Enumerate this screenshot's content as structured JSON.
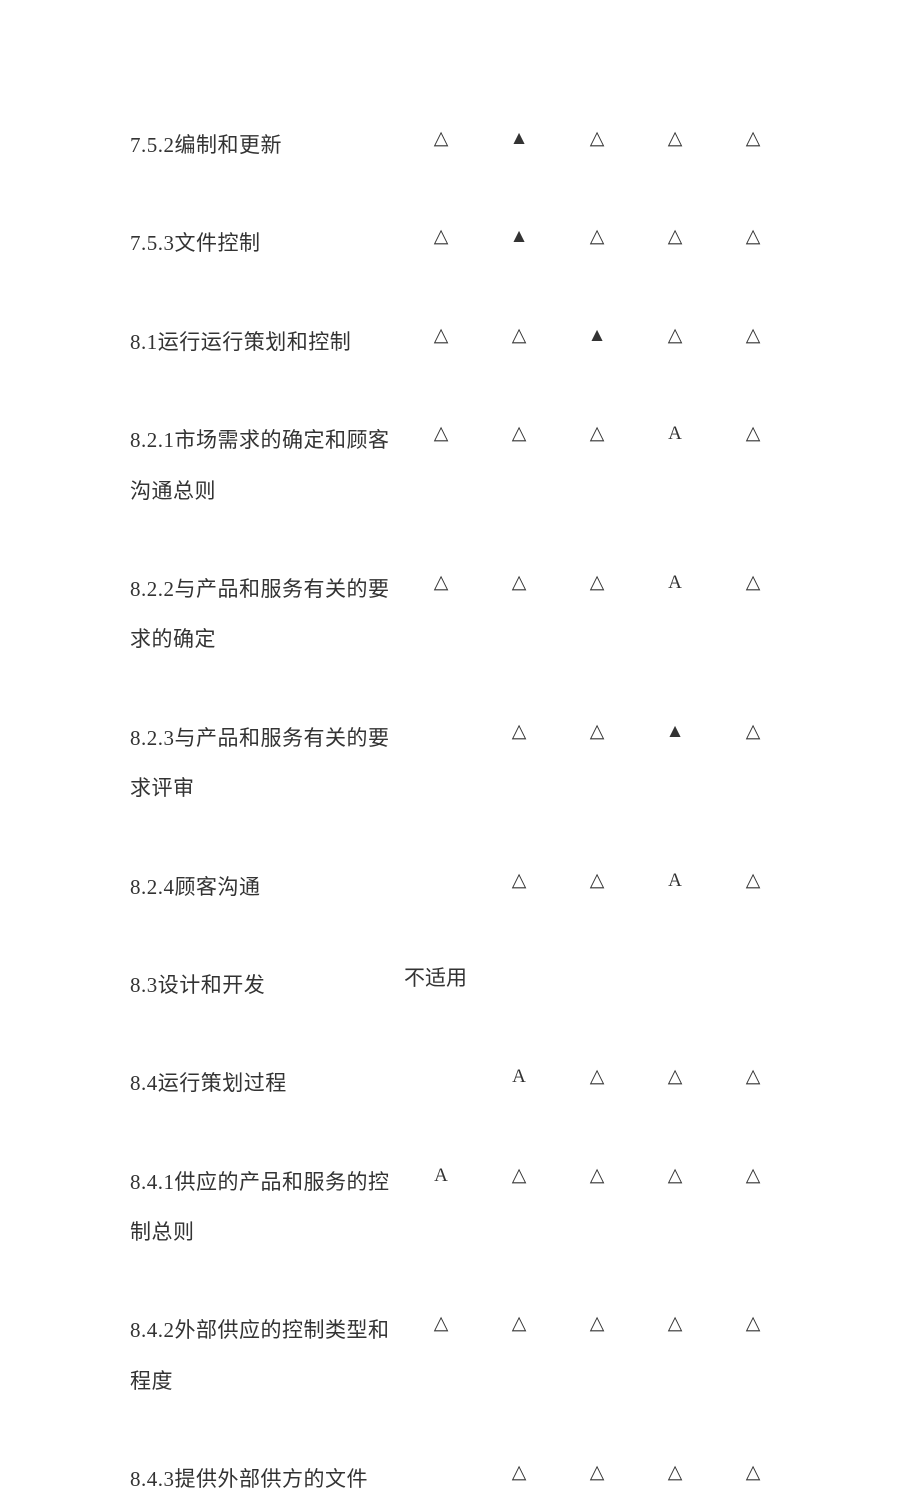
{
  "background_color": "#ffffff",
  "text_color": "#333333",
  "font_family": "SimSun",
  "label_fontsize": 21,
  "cell_fontsize": 19,
  "column_count": 5,
  "rows": [
    {
      "label": "7.5.2编制和更新",
      "cells": [
        "△",
        "▲",
        "△",
        "△",
        "△"
      ]
    },
    {
      "label": "7.5.3文件控制",
      "cells": [
        "△",
        "▲",
        "△",
        "△",
        "△"
      ]
    },
    {
      "label": "8.1运行运行策划和控制",
      "cells": [
        "△",
        "△",
        "▲",
        "△",
        "△"
      ]
    },
    {
      "label": "8.2.1市场需求的确定和顾客沟通总则",
      "cells": [
        "△",
        "△",
        "△",
        "A",
        "△"
      ]
    },
    {
      "label": "8.2.2与产品和服务有关的要求的确定",
      "cells": [
        "△",
        "△",
        "△",
        "A",
        "△"
      ]
    },
    {
      "label": "8.2.3与产品和服务有关的要求评审",
      "cells": [
        "",
        "△",
        "△",
        "▲",
        "△"
      ]
    },
    {
      "label": "8.2.4顾客沟通",
      "cells": [
        "",
        "△",
        "△",
        "A",
        "△"
      ]
    },
    {
      "label": "8.3设计和开发",
      "cells": [],
      "na_text": "不适用"
    },
    {
      "label": "8.4运行策划过程",
      "cells": [
        "",
        "A",
        "△",
        "△",
        "△"
      ]
    },
    {
      "label": "8.4.1供应的产品和服务的控制总则",
      "cells": [
        "A",
        "△",
        "△",
        "△",
        "△"
      ]
    },
    {
      "label": "8.4.2外部供应的控制类型和程度",
      "cells": [
        "△",
        "△",
        "△",
        "△",
        "△"
      ]
    },
    {
      "label": "8.4.3提供外部供方的文件",
      "cells": [
        "",
        "△",
        "△",
        "△",
        "△"
      ]
    }
  ]
}
